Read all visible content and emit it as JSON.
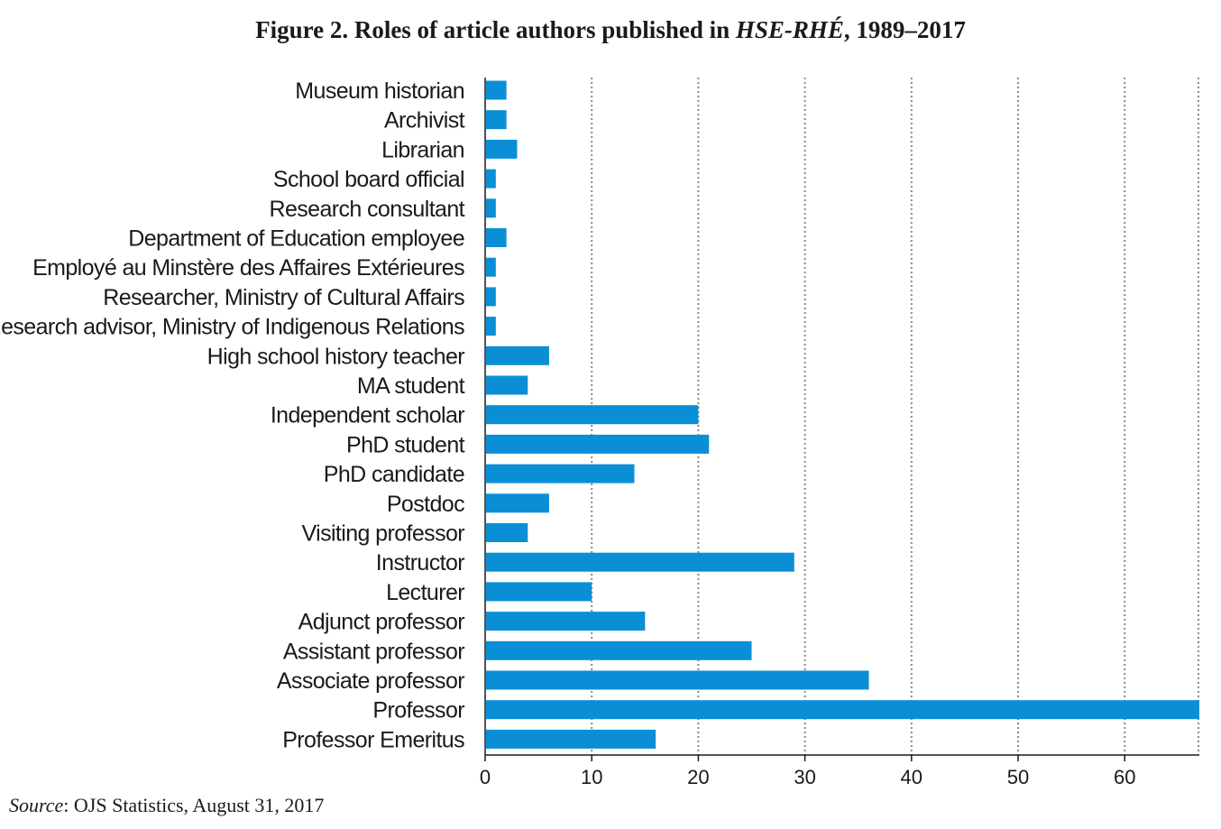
{
  "chart_data": {
    "type": "bar",
    "orientation": "horizontal",
    "title": {
      "prefix": "Figure 2. Roles of article authors published in ",
      "journal": "HSE-RHÉ",
      "suffix": ", 1989–2017"
    },
    "categories": [
      "Museum historian",
      "Archivist",
      "Librarian",
      "School board official",
      "Research consultant",
      "Department of Education employee",
      "Employé au Minstère des Affaires Extérieures",
      "Researcher, Ministry of Cultural Affairs",
      "Research advisor, Ministry of Indigenous Relations",
      "High school history teacher",
      "MA student",
      "Independent scholar",
      "PhD student",
      "PhD candidate",
      "Postdoc",
      "Visiting professor",
      "Instructor",
      "Lecturer",
      "Adjunct professor",
      "Assistant professor",
      "Associate professor",
      "Professor",
      "Professor Emeritus"
    ],
    "values": [
      2,
      2,
      3,
      1,
      1,
      2,
      1,
      1,
      1,
      6,
      4,
      20,
      21,
      14,
      6,
      4,
      29,
      10,
      15,
      25,
      36,
      67,
      16
    ],
    "xticks": [
      0,
      10,
      20,
      30,
      40,
      50,
      60
    ],
    "xlim": [
      0,
      67
    ],
    "xlabel": "",
    "ylabel": "",
    "grid": "vertical-dotted",
    "bar_color": "#0a8fd6",
    "source": {
      "label": "Source",
      "text": ": OJS Statistics, August 31, 2017"
    }
  }
}
